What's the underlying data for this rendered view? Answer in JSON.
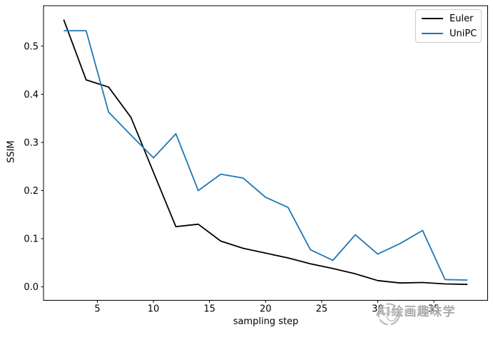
{
  "chart_data": {
    "type": "line",
    "title": "",
    "xlabel": "sampling step",
    "ylabel": "SSIM",
    "x": [
      2,
      4,
      6,
      8,
      10,
      12,
      14,
      16,
      18,
      20,
      22,
      24,
      26,
      28,
      30,
      32,
      34,
      36,
      38
    ],
    "series": [
      {
        "name": "Euler",
        "color": "#000000",
        "values": [
          0.555,
          0.43,
          0.415,
          0.352,
          0.238,
          0.125,
          0.13,
          0.095,
          0.08,
          0.07,
          0.06,
          0.048,
          0.038,
          0.027,
          0.013,
          0.008,
          0.009,
          0.006,
          0.005
        ]
      },
      {
        "name": "UniPC",
        "color": "#1f77b4",
        "values": [
          0.532,
          0.532,
          0.363,
          0.315,
          0.268,
          0.318,
          0.2,
          0.234,
          0.226,
          0.186,
          0.165,
          0.077,
          0.055,
          0.108,
          0.068,
          0.09,
          0.117,
          0.015,
          0.014
        ]
      }
    ],
    "xlim": [
      0.2,
      39.8
    ],
    "ylim": [
      -0.028,
      0.584
    ],
    "xticks": [
      5,
      10,
      15,
      20,
      25,
      30,
      35
    ],
    "yticks": [
      0.0,
      0.1,
      0.2,
      0.3,
      0.4,
      0.5
    ],
    "grid": false,
    "legend_position": "upper right"
  },
  "legend": {
    "items": [
      {
        "label": "Euler",
        "color": "#000000"
      },
      {
        "label": "UniPC",
        "color": "#1f77b4"
      }
    ]
  },
  "watermark": {
    "icon": "doodle-circle-logo-icon",
    "text": "AI绘画趣味学",
    "color": "#ababab"
  }
}
